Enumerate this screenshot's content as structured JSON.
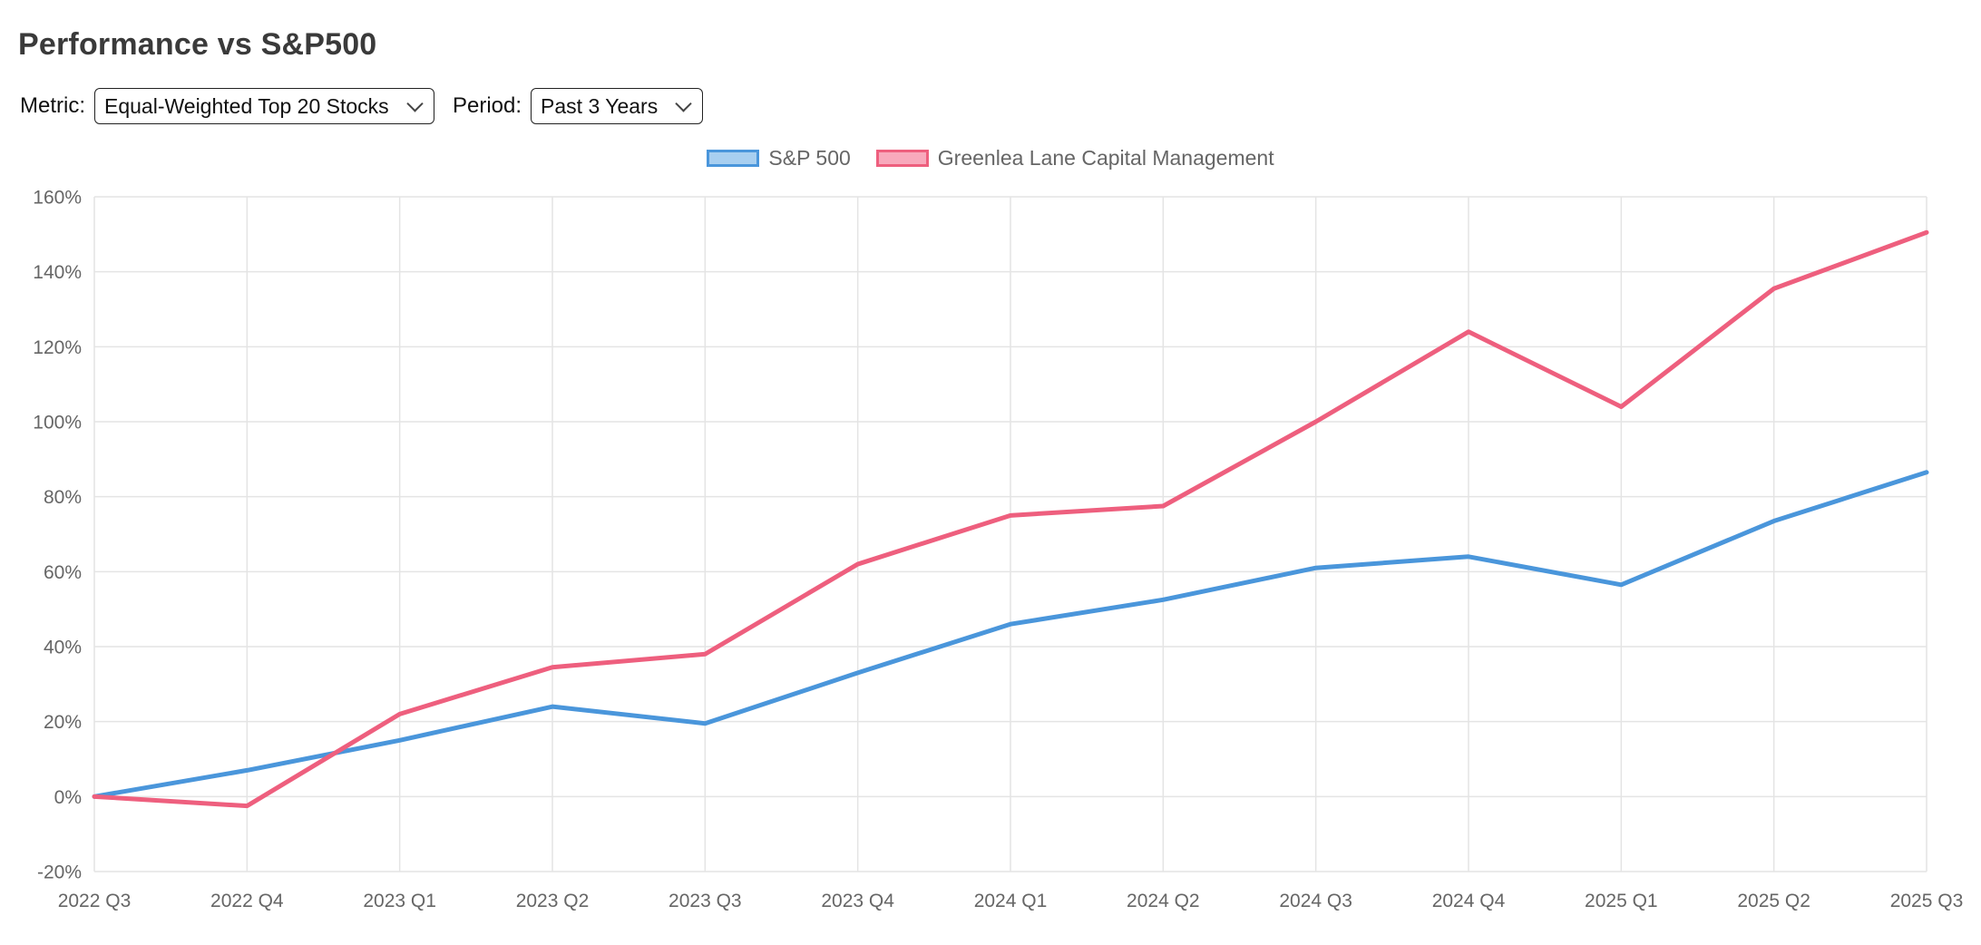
{
  "page": {
    "title": "Performance vs S&P500"
  },
  "controls": {
    "metric_label": "Metric:",
    "metric_value": "Equal-Weighted Top 20 Stocks",
    "period_label": "Period:",
    "period_value": "Past 3 Years"
  },
  "legend": {
    "items": [
      {
        "label": "S&P 500",
        "fill": "#A8CFF0",
        "border": "#4A96DB"
      },
      {
        "label": "Greenlea Lane Capital Management",
        "fill": "#F8A9BC",
        "border": "#EE5F7E"
      }
    ]
  },
  "chart_data": {
    "type": "line",
    "title": "Performance vs S&P500",
    "categories": [
      "2022 Q3",
      "2022 Q4",
      "2023 Q1",
      "2023 Q2",
      "2023 Q3",
      "2023 Q4",
      "2024 Q1",
      "2024 Q2",
      "2024 Q3",
      "2024 Q4",
      "2025 Q1",
      "2025 Q2",
      "2025 Q3"
    ],
    "series": [
      {
        "name": "S&P 500",
        "color": "#4A96DB",
        "values": [
          0,
          7,
          15,
          24,
          19.5,
          33,
          46,
          52.5,
          61,
          64,
          56.5,
          73.5,
          86.5
        ]
      },
      {
        "name": "Greenlea Lane Capital Management",
        "color": "#EE5F7E",
        "values": [
          0,
          -2.5,
          22,
          34.5,
          38,
          62,
          75,
          77.5,
          100,
          124,
          104,
          135.5,
          150.5
        ]
      }
    ],
    "xlabel": "",
    "ylabel": "",
    "ylim": [
      -20,
      160
    ],
    "y_tick_step": 20,
    "y_tick_format": "percent",
    "grid": true,
    "grid_color": "#E4E4E4",
    "tick_color": "#666666",
    "legend_position": "top"
  }
}
